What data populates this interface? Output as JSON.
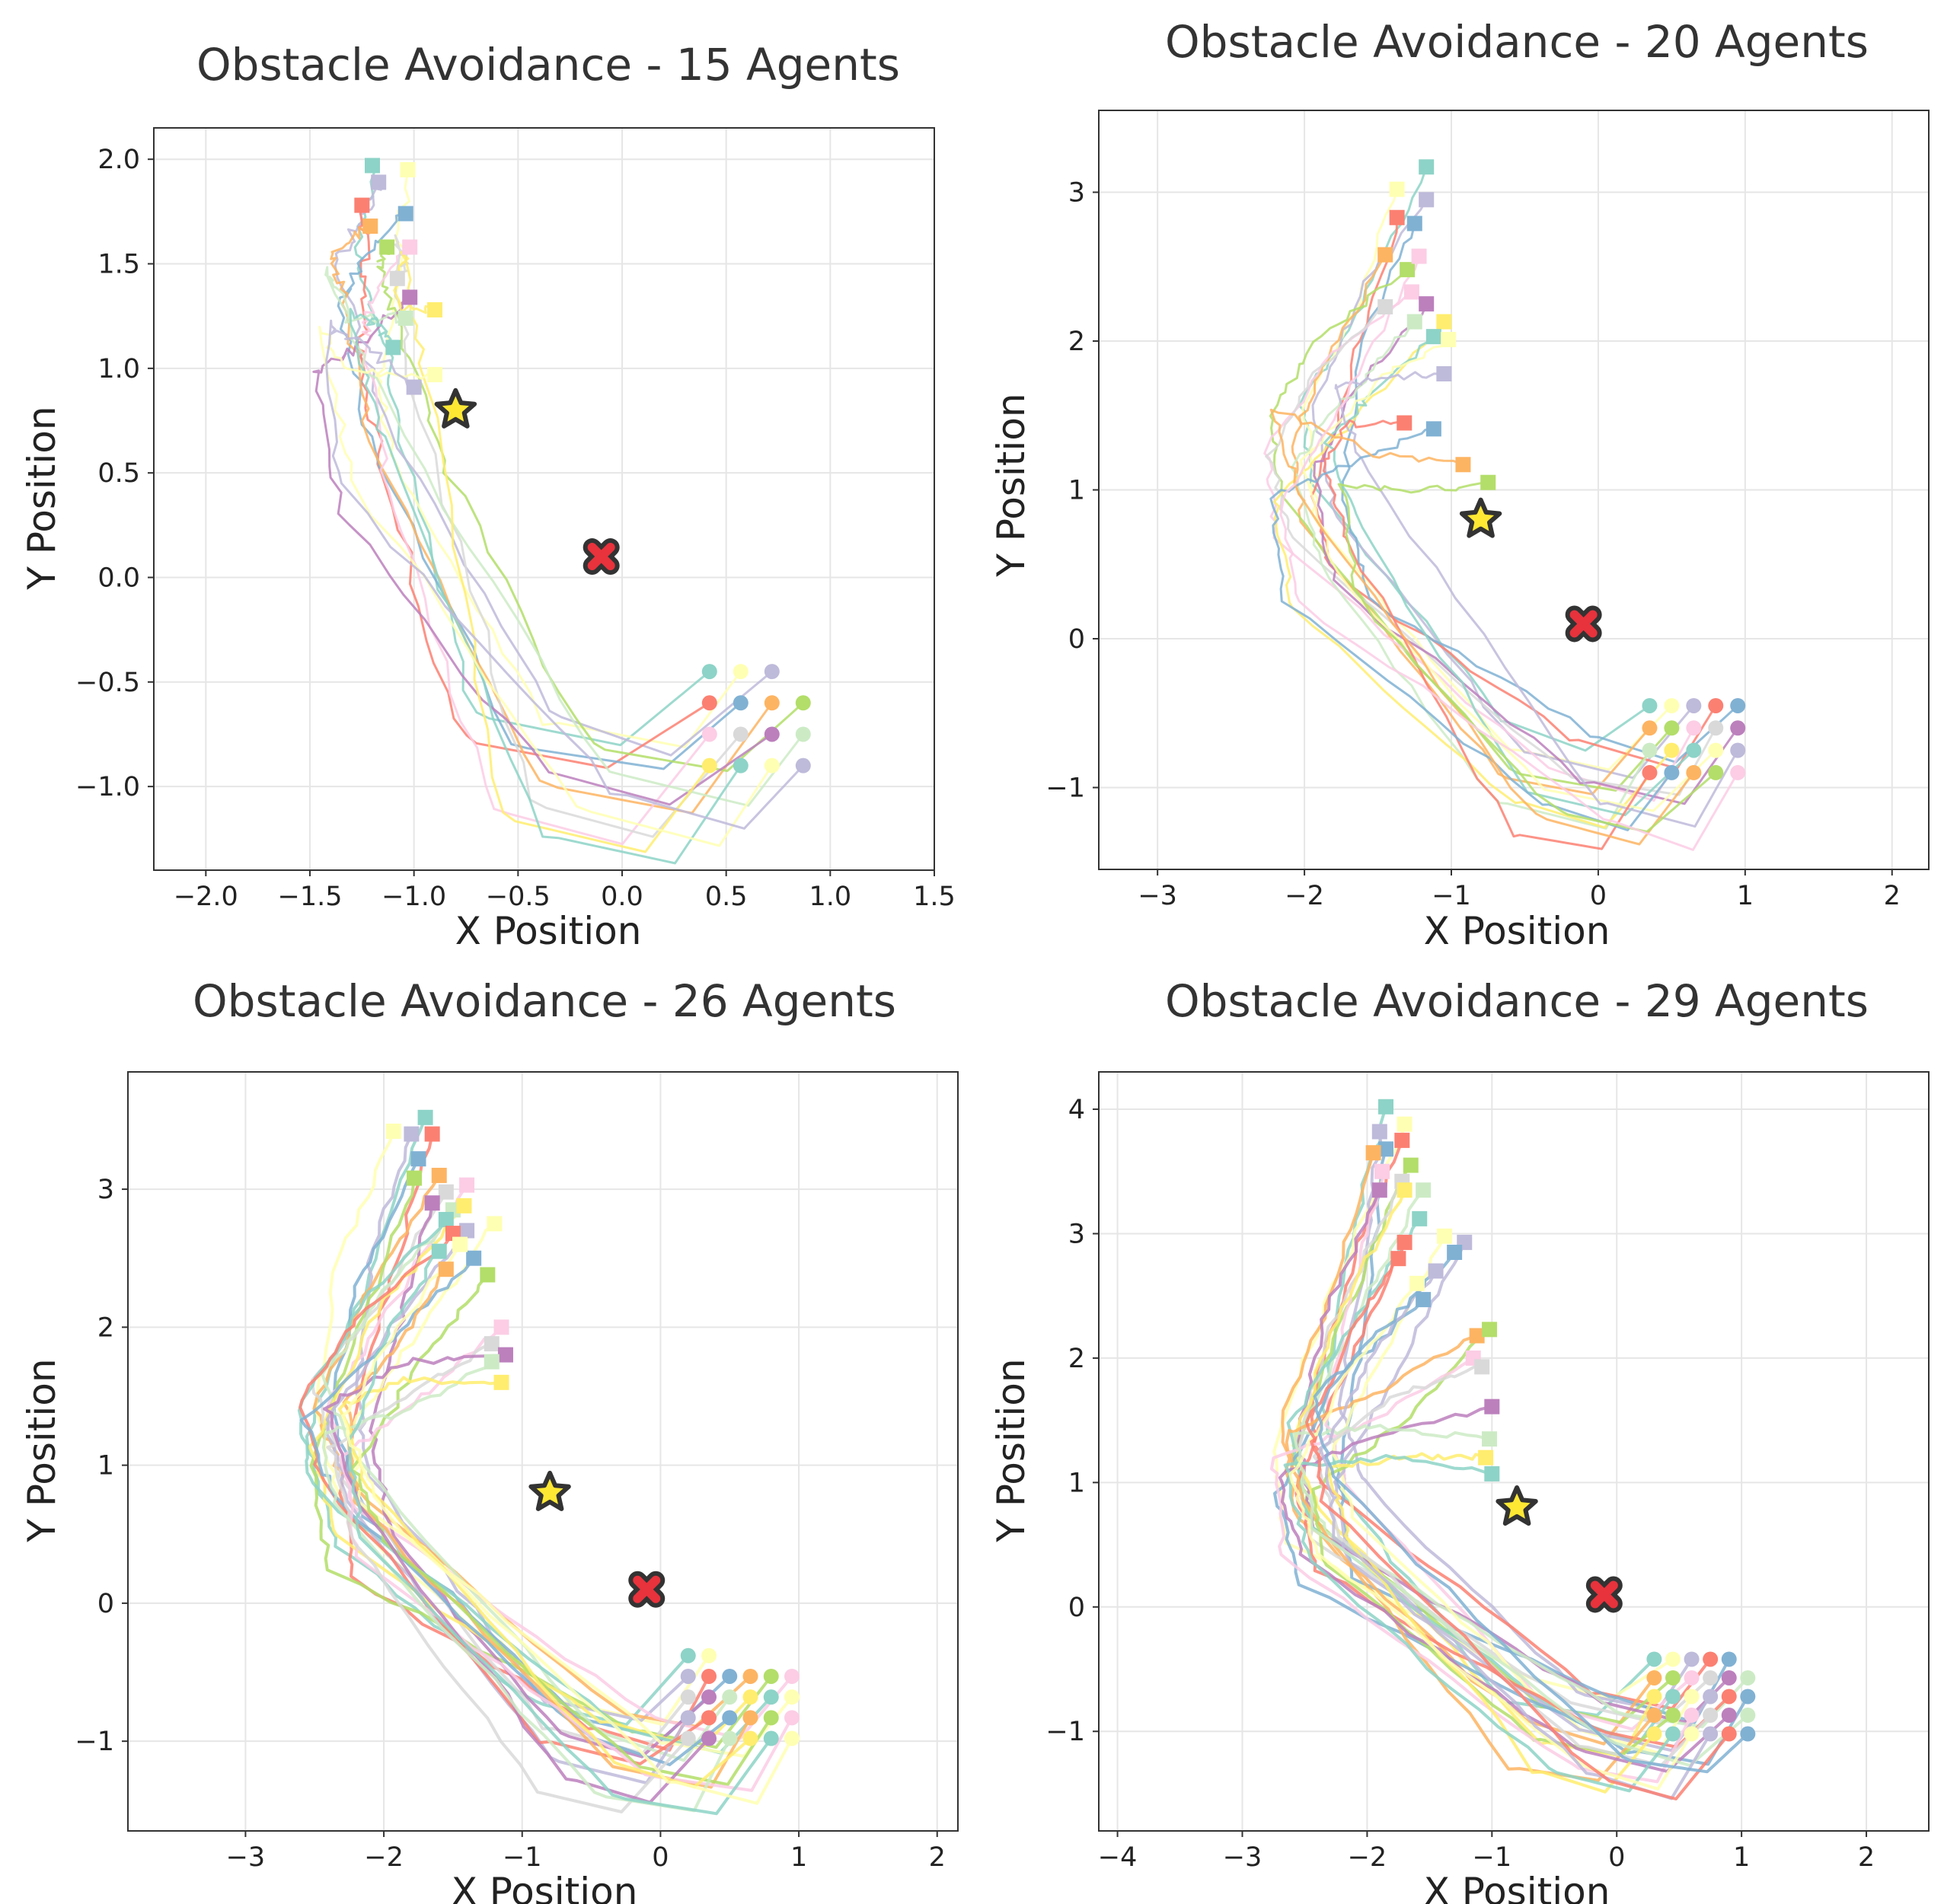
{
  "chart_data": [
    {
      "type": "line",
      "title": "Obstacle Avoidance - 15 Agents",
      "xlabel": "X Position",
      "ylabel": "Y Position",
      "xlim": [
        -2.25,
        1.5
      ],
      "ylim": [
        -1.4,
        2.15
      ],
      "xticks": [
        -2.0,
        -1.5,
        -1.0,
        -0.5,
        0.0,
        0.5,
        1.0,
        1.5
      ],
      "yticks": [
        -1.0,
        -0.5,
        0.0,
        0.5,
        1.0,
        1.5,
        2.0
      ],
      "xtick_labels": [
        "−2.0",
        "−1.5",
        "−1.0",
        "−0.5",
        "0.0",
        "0.5",
        "1.0",
        "1.5"
      ],
      "ytick_labels": [
        "−1.0",
        "−0.5",
        "0.0",
        "0.5",
        "1.0",
        "1.5",
        "2.0"
      ],
      "grid": true,
      "agent_count": 15,
      "goal": {
        "x": -0.8,
        "y": 0.8,
        "marker": "star",
        "color": "#FFE833"
      },
      "obstacle": {
        "x": -0.1,
        "y": 0.1,
        "marker": "x",
        "color": "#E8323C"
      },
      "starts": [
        [
          0.42,
          -0.45
        ],
        [
          0.57,
          -0.45
        ],
        [
          0.72,
          -0.45
        ],
        [
          0.42,
          -0.6
        ],
        [
          0.57,
          -0.6
        ],
        [
          0.72,
          -0.6
        ],
        [
          0.87,
          -0.6
        ],
        [
          0.42,
          -0.75
        ],
        [
          0.57,
          -0.75
        ],
        [
          0.72,
          -0.75
        ],
        [
          0.87,
          -0.75
        ],
        [
          0.42,
          -0.9
        ],
        [
          0.57,
          -0.9
        ],
        [
          0.72,
          -0.9
        ],
        [
          0.87,
          -0.9
        ]
      ],
      "ends": [
        [
          -1.2,
          1.97
        ],
        [
          -1.03,
          1.95
        ],
        [
          -1.17,
          1.89
        ],
        [
          -1.25,
          1.78
        ],
        [
          -1.04,
          1.74
        ],
        [
          -1.21,
          1.68
        ],
        [
          -1.13,
          1.58
        ],
        [
          -1.02,
          1.58
        ],
        [
          -1.08,
          1.43
        ],
        [
          -1.02,
          1.34
        ],
        [
          -1.04,
          1.24
        ],
        [
          -0.9,
          1.28
        ],
        [
          -1.1,
          1.1
        ],
        [
          -0.9,
          0.97
        ],
        [
          -1.0,
          0.91
        ]
      ]
    },
    {
      "type": "line",
      "title": "Obstacle Avoidance - 20 Agents",
      "xlabel": "X Position",
      "ylabel": "Y Position",
      "xlim": [
        -3.4,
        2.25
      ],
      "ylim": [
        -1.55,
        3.55
      ],
      "xticks": [
        -3,
        -2,
        -1,
        0,
        1,
        2
      ],
      "yticks": [
        -1,
        0,
        1,
        2,
        3
      ],
      "xtick_labels": [
        "−3",
        "−2",
        "−1",
        "0",
        "1",
        "2"
      ],
      "ytick_labels": [
        "−1",
        "0",
        "1",
        "2",
        "3"
      ],
      "grid": true,
      "agent_count": 20,
      "goal": {
        "x": -0.8,
        "y": 0.8,
        "marker": "star",
        "color": "#FFE833"
      },
      "obstacle": {
        "x": -0.1,
        "y": 0.1,
        "marker": "x",
        "color": "#E8323C"
      },
      "starts": [
        [
          0.35,
          -0.45
        ],
        [
          0.5,
          -0.45
        ],
        [
          0.65,
          -0.45
        ],
        [
          0.8,
          -0.45
        ],
        [
          0.95,
          -0.45
        ],
        [
          0.35,
          -0.6
        ],
        [
          0.5,
          -0.6
        ],
        [
          0.65,
          -0.6
        ],
        [
          0.8,
          -0.6
        ],
        [
          0.95,
          -0.6
        ],
        [
          0.35,
          -0.75
        ],
        [
          0.5,
          -0.75
        ],
        [
          0.65,
          -0.75
        ],
        [
          0.8,
          -0.75
        ],
        [
          0.95,
          -0.75
        ],
        [
          0.35,
          -0.9
        ],
        [
          0.5,
          -0.9
        ],
        [
          0.65,
          -0.9
        ],
        [
          0.8,
          -0.9
        ],
        [
          0.95,
          -0.9
        ]
      ],
      "ends": [
        [
          -1.17,
          3.17
        ],
        [
          -1.37,
          3.02
        ],
        [
          -1.17,
          2.95
        ],
        [
          -1.37,
          2.83
        ],
        [
          -1.25,
          2.79
        ],
        [
          -1.45,
          2.58
        ],
        [
          -1.3,
          2.48
        ],
        [
          -1.27,
          2.33
        ],
        [
          -1.45,
          2.23
        ],
        [
          -1.17,
          2.25
        ],
        [
          -1.25,
          2.13
        ],
        [
          -1.05,
          2.13
        ],
        [
          -1.12,
          2.03
        ],
        [
          -1.02,
          2.01
        ],
        [
          -1.05,
          1.78
        ],
        [
          -1.32,
          1.45
        ],
        [
          -1.12,
          1.41
        ],
        [
          -0.92,
          1.17
        ],
        [
          -0.75,
          1.05
        ],
        [
          -1.22,
          2.57
        ]
      ]
    },
    {
      "type": "line",
      "title": "Obstacle Avoidance - 26 Agents",
      "xlabel": "X Position",
      "ylabel": "Y Position",
      "xlim": [
        -3.85,
        2.15
      ],
      "ylim": [
        -1.65,
        3.85
      ],
      "xticks": [
        -3,
        -2,
        -1,
        0,
        1,
        2
      ],
      "yticks": [
        -1,
        0,
        1,
        2,
        3
      ],
      "xtick_labels": [
        "−3",
        "−2",
        "−1",
        "0",
        "1",
        "2"
      ],
      "ytick_labels": [
        "−1",
        "0",
        "1",
        "2",
        "3"
      ],
      "grid": true,
      "agent_count": 26,
      "goal": {
        "x": -0.8,
        "y": 0.8,
        "marker": "star",
        "color": "#FFE833"
      },
      "obstacle": {
        "x": -0.1,
        "y": 0.1,
        "marker": "x",
        "color": "#E8323C"
      },
      "starts": [
        [
          0.2,
          -0.38
        ],
        [
          0.35,
          -0.38
        ],
        [
          0.2,
          -0.53
        ],
        [
          0.35,
          -0.53
        ],
        [
          0.5,
          -0.53
        ],
        [
          0.65,
          -0.53
        ],
        [
          0.8,
          -0.53
        ],
        [
          0.95,
          -0.53
        ],
        [
          0.2,
          -0.68
        ],
        [
          0.35,
          -0.68
        ],
        [
          0.5,
          -0.68
        ],
        [
          0.65,
          -0.68
        ],
        [
          0.8,
          -0.68
        ],
        [
          0.95,
          -0.68
        ],
        [
          0.2,
          -0.83
        ],
        [
          0.35,
          -0.83
        ],
        [
          0.5,
          -0.83
        ],
        [
          0.65,
          -0.83
        ],
        [
          0.8,
          -0.83
        ],
        [
          0.95,
          -0.83
        ],
        [
          0.2,
          -0.98
        ],
        [
          0.35,
          -0.98
        ],
        [
          0.5,
          -0.98
        ],
        [
          0.65,
          -0.98
        ],
        [
          0.8,
          -0.98
        ],
        [
          0.95,
          -0.98
        ]
      ],
      "ends": [
        [
          -1.7,
          3.52
        ],
        [
          -1.93,
          3.42
        ],
        [
          -1.8,
          3.4
        ],
        [
          -1.65,
          3.4
        ],
        [
          -1.75,
          3.22
        ],
        [
          -1.6,
          3.1
        ],
        [
          -1.78,
          3.08
        ],
        [
          -1.4,
          3.03
        ],
        [
          -1.55,
          2.98
        ],
        [
          -1.65,
          2.9
        ],
        [
          -1.5,
          2.85
        ],
        [
          -1.42,
          2.88
        ],
        [
          -1.55,
          2.78
        ],
        [
          -1.2,
          2.75
        ],
        [
          -1.4,
          2.7
        ],
        [
          -1.5,
          2.68
        ],
        [
          -1.35,
          2.5
        ],
        [
          -1.55,
          2.42
        ],
        [
          -1.25,
          2.38
        ],
        [
          -1.15,
          2.0
        ],
        [
          -1.22,
          1.88
        ],
        [
          -1.12,
          1.8
        ],
        [
          -1.22,
          1.75
        ],
        [
          -1.15,
          1.6
        ],
        [
          -1.6,
          2.55
        ],
        [
          -1.45,
          2.6
        ]
      ]
    },
    {
      "type": "line",
      "title": "Obstacle Avoidance - 29 Agents",
      "xlabel": "X Position",
      "ylabel": "Y Position",
      "xlim": [
        -4.15,
        2.5
      ],
      "ylim": [
        -1.8,
        4.3
      ],
      "xticks": [
        -4,
        -3,
        -2,
        -1,
        0,
        1,
        2
      ],
      "yticks": [
        -1,
        0,
        1,
        2,
        3,
        4
      ],
      "xtick_labels": [
        "−4",
        "−3",
        "−2",
        "−1",
        "0",
        "1",
        "2"
      ],
      "ytick_labels": [
        "−1",
        "0",
        "1",
        "2",
        "3",
        "4"
      ],
      "grid": true,
      "agent_count": 29,
      "goal": {
        "x": -0.8,
        "y": 0.8,
        "marker": "star",
        "color": "#FFE833"
      },
      "obstacle": {
        "x": -0.1,
        "y": 0.1,
        "marker": "x",
        "color": "#E8323C"
      },
      "starts": [
        [
          0.3,
          -0.42
        ],
        [
          0.45,
          -0.42
        ],
        [
          0.6,
          -0.42
        ],
        [
          0.75,
          -0.42
        ],
        [
          0.9,
          -0.42
        ],
        [
          0.3,
          -0.57
        ],
        [
          0.45,
          -0.57
        ],
        [
          0.6,
          -0.57
        ],
        [
          0.75,
          -0.57
        ],
        [
          0.9,
          -0.57
        ],
        [
          1.05,
          -0.57
        ],
        [
          0.3,
          -0.72
        ],
        [
          0.45,
          -0.72
        ],
        [
          0.6,
          -0.72
        ],
        [
          0.75,
          -0.72
        ],
        [
          0.9,
          -0.72
        ],
        [
          1.05,
          -0.72
        ],
        [
          0.3,
          -0.87
        ],
        [
          0.45,
          -0.87
        ],
        [
          0.6,
          -0.87
        ],
        [
          0.75,
          -0.87
        ],
        [
          0.9,
          -0.87
        ],
        [
          1.05,
          -0.87
        ],
        [
          0.3,
          -1.02
        ],
        [
          0.45,
          -1.02
        ],
        [
          0.6,
          -1.02
        ],
        [
          0.75,
          -1.02
        ],
        [
          0.9,
          -1.02
        ],
        [
          1.05,
          -1.02
        ]
      ],
      "ends": [
        [
          -1.85,
          4.02
        ],
        [
          -1.7,
          3.88
        ],
        [
          -1.9,
          3.82
        ],
        [
          -1.72,
          3.75
        ],
        [
          -1.85,
          3.68
        ],
        [
          -1.95,
          3.65
        ],
        [
          -1.65,
          3.55
        ],
        [
          -1.88,
          3.5
        ],
        [
          -1.72,
          3.42
        ],
        [
          -1.9,
          3.35
        ],
        [
          -1.55,
          3.35
        ],
        [
          -1.7,
          3.35
        ],
        [
          -1.58,
          3.12
        ],
        [
          -1.38,
          2.98
        ],
        [
          -1.22,
          2.93
        ],
        [
          -1.7,
          2.93
        ],
        [
          -1.55,
          2.47
        ],
        [
          -1.12,
          2.18
        ],
        [
          -1.02,
          2.23
        ],
        [
          -1.15,
          2.0
        ],
        [
          -1.08,
          1.93
        ],
        [
          -1.0,
          1.61
        ],
        [
          -1.02,
          1.35
        ],
        [
          -1.05,
          1.2
        ],
        [
          -1.0,
          1.07
        ],
        [
          -1.6,
          2.6
        ],
        [
          -1.45,
          2.7
        ],
        [
          -1.75,
          2.8
        ],
        [
          -1.3,
          2.85
        ]
      ]
    }
  ]
}
